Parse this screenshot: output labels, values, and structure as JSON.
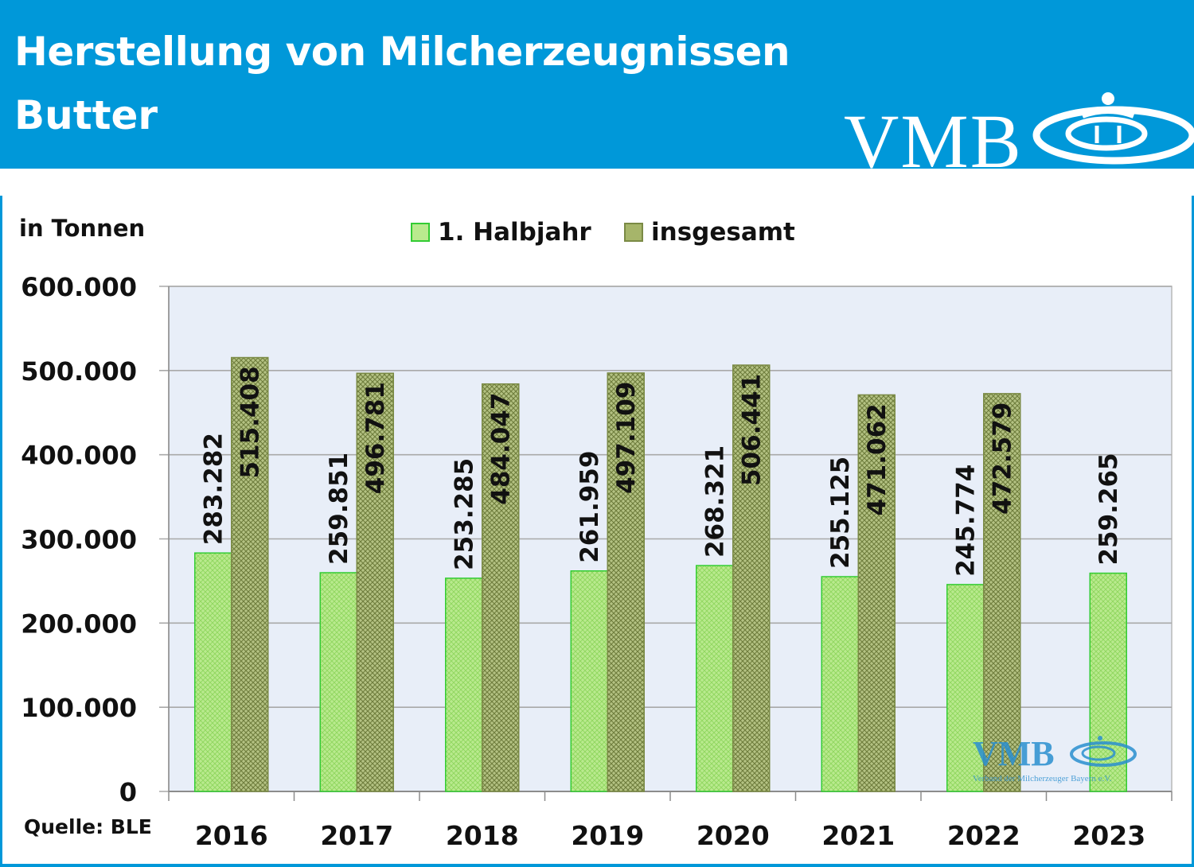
{
  "header": {
    "title": "Herstellung von Milcherzeugnissen",
    "subtitle": "Butter",
    "logo_text": "VMB"
  },
  "unit_label": "in Tonnen",
  "source": "Quelle: BLE",
  "watermark": {
    "logo_text": "VMB",
    "caption": "Verband der Milcherzeuger Bayern e.V."
  },
  "colors": {
    "header_bg": "#0098d9",
    "plot_bg": "#e8eef8",
    "halbjahr_fill": "#b8e88a",
    "halbjahr_stroke": "#33cc33",
    "insgesamt_fill": "#a6b56a",
    "insgesamt_stroke": "#7a8a45"
  },
  "chart_data": {
    "type": "bar",
    "categories": [
      "2016",
      "2017",
      "2018",
      "2019",
      "2020",
      "2021",
      "2022",
      "2023"
    ],
    "series": [
      {
        "name": "1. Halbjahr",
        "values": [
          283282,
          259851,
          253285,
          261959,
          268321,
          255125,
          245774,
          259265
        ],
        "labels": [
          "283.282",
          "259.851",
          "253.285",
          "261.959",
          "268.321",
          "255.125",
          "245.774",
          "259.265"
        ]
      },
      {
        "name": "insgesamt",
        "values": [
          515408,
          496781,
          484047,
          497109,
          506441,
          471062,
          472579,
          null
        ],
        "labels": [
          "515.408",
          "496.781",
          "484.047",
          "497.109",
          "506.441",
          "471.062",
          "472.579",
          ""
        ]
      }
    ],
    "ylim": [
      0,
      600000
    ],
    "yticks": [
      "0",
      "100.000",
      "200.000",
      "300.000",
      "400.000",
      "500.000",
      "600.000"
    ],
    "grid": true,
    "legend_position": "top-center"
  }
}
